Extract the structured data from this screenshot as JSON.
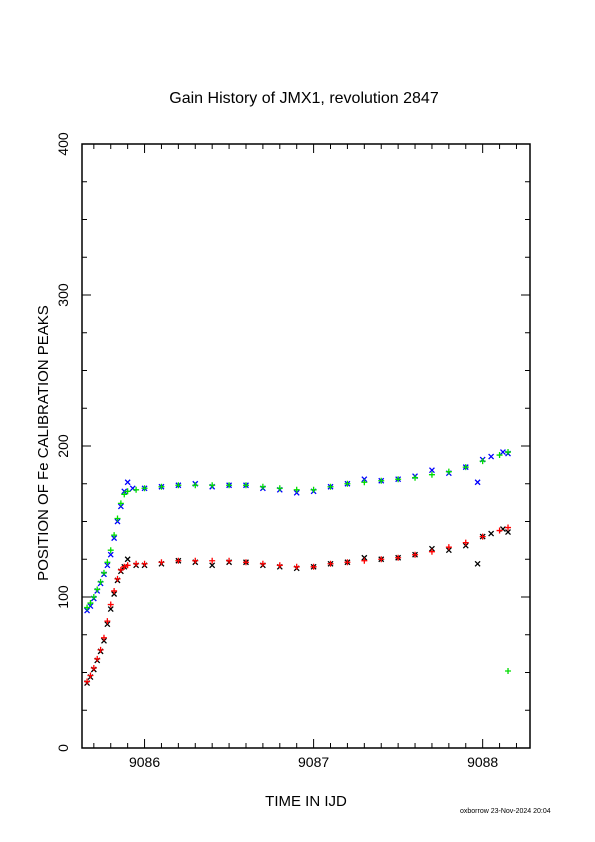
{
  "chart_data": {
    "type": "scatter",
    "title": "Gain History of JMX1, revolution 2847",
    "xlabel": "TIME IN IJD",
    "ylabel": "POSITION OF Fe CALIBRATION PEAKS",
    "xlim": [
      9085.63,
      9088.28
    ],
    "ylim": [
      0,
      400
    ],
    "x_ticks": [
      9086,
      9087,
      9088
    ],
    "y_ticks": [
      0,
      100,
      200,
      300,
      400
    ],
    "x_tick_labels": [
      "9086",
      "9087",
      "9088"
    ],
    "y_tick_labels": [
      "0",
      "100",
      "200",
      "300",
      "400"
    ],
    "grid": false,
    "series": [
      {
        "marker": "x",
        "color": "#0000ff",
        "points": [
          [
            9085.66,
            91
          ],
          [
            9085.68,
            94
          ],
          [
            9085.7,
            99
          ],
          [
            9085.72,
            104
          ],
          [
            9085.74,
            109
          ],
          [
            9085.76,
            115
          ],
          [
            9085.78,
            121
          ],
          [
            9085.8,
            128
          ],
          [
            9085.82,
            139
          ],
          [
            9085.84,
            150
          ],
          [
            9085.86,
            160
          ],
          [
            9085.88,
            170
          ],
          [
            9085.9,
            176
          ],
          [
            9085.93,
            172
          ],
          [
            9086.0,
            172
          ],
          [
            9086.1,
            173
          ],
          [
            9086.2,
            174
          ],
          [
            9086.3,
            175
          ],
          [
            9086.4,
            173
          ],
          [
            9086.5,
            174
          ],
          [
            9086.6,
            174
          ],
          [
            9086.7,
            172
          ],
          [
            9086.8,
            171
          ],
          [
            9086.9,
            169
          ],
          [
            9087.0,
            170
          ],
          [
            9087.1,
            173
          ],
          [
            9087.2,
            175
          ],
          [
            9087.3,
            178
          ],
          [
            9087.4,
            177
          ],
          [
            9087.5,
            178
          ],
          [
            9087.6,
            180
          ],
          [
            9087.7,
            184
          ],
          [
            9087.8,
            182
          ],
          [
            9087.9,
            186
          ],
          [
            9087.97,
            176
          ],
          [
            9088.0,
            191
          ],
          [
            9088.05,
            193
          ],
          [
            9088.12,
            196
          ],
          [
            9088.15,
            195
          ]
        ]
      },
      {
        "marker": "+",
        "color": "#00dd00",
        "points": [
          [
            9085.66,
            93
          ],
          [
            9085.68,
            96
          ],
          [
            9085.7,
            100
          ],
          [
            9085.72,
            105
          ],
          [
            9085.74,
            110
          ],
          [
            9085.76,
            116
          ],
          [
            9085.78,
            123
          ],
          [
            9085.8,
            131
          ],
          [
            9085.82,
            141
          ],
          [
            9085.84,
            152
          ],
          [
            9085.86,
            162
          ],
          [
            9085.88,
            168
          ],
          [
            9085.9,
            170
          ],
          [
            9085.95,
            171
          ],
          [
            9086.0,
            172
          ],
          [
            9086.1,
            173
          ],
          [
            9086.2,
            174
          ],
          [
            9086.3,
            174
          ],
          [
            9086.4,
            174
          ],
          [
            9086.5,
            174
          ],
          [
            9086.6,
            174
          ],
          [
            9086.7,
            173
          ],
          [
            9086.8,
            172
          ],
          [
            9086.9,
            171
          ],
          [
            9087.0,
            171
          ],
          [
            9087.1,
            173
          ],
          [
            9087.2,
            175
          ],
          [
            9087.3,
            176
          ],
          [
            9087.4,
            177
          ],
          [
            9087.5,
            178
          ],
          [
            9087.6,
            179
          ],
          [
            9087.7,
            181
          ],
          [
            9087.8,
            183
          ],
          [
            9087.9,
            186
          ],
          [
            9088.0,
            190
          ],
          [
            9088.1,
            194
          ],
          [
            9088.15,
            196
          ],
          [
            9088.15,
            51
          ]
        ]
      },
      {
        "marker": "x",
        "color": "#000000",
        "points": [
          [
            9085.66,
            43
          ],
          [
            9085.68,
            47
          ],
          [
            9085.7,
            52
          ],
          [
            9085.72,
            58
          ],
          [
            9085.74,
            64
          ],
          [
            9085.76,
            71
          ],
          [
            9085.78,
            82
          ],
          [
            9085.8,
            92
          ],
          [
            9085.82,
            102
          ],
          [
            9085.84,
            111
          ],
          [
            9085.86,
            117
          ],
          [
            9085.88,
            120
          ],
          [
            9085.9,
            125
          ],
          [
            9085.95,
            121
          ],
          [
            9086.0,
            121
          ],
          [
            9086.1,
            122
          ],
          [
            9086.2,
            124
          ],
          [
            9086.3,
            123
          ],
          [
            9086.4,
            121
          ],
          [
            9086.5,
            123
          ],
          [
            9086.6,
            123
          ],
          [
            9086.7,
            121
          ],
          [
            9086.8,
            120
          ],
          [
            9086.9,
            119
          ],
          [
            9087.0,
            120
          ],
          [
            9087.1,
            122
          ],
          [
            9087.2,
            123
          ],
          [
            9087.3,
            126
          ],
          [
            9087.4,
            125
          ],
          [
            9087.5,
            126
          ],
          [
            9087.6,
            128
          ],
          [
            9087.7,
            132
          ],
          [
            9087.8,
            131
          ],
          [
            9087.9,
            134
          ],
          [
            9087.97,
            122
          ],
          [
            9088.0,
            140
          ],
          [
            9088.05,
            142
          ],
          [
            9088.12,
            145
          ],
          [
            9088.15,
            143
          ]
        ]
      },
      {
        "marker": "+",
        "color": "#ff0000",
        "points": [
          [
            9085.66,
            44
          ],
          [
            9085.68,
            48
          ],
          [
            9085.7,
            53
          ],
          [
            9085.72,
            59
          ],
          [
            9085.74,
            65
          ],
          [
            9085.76,
            73
          ],
          [
            9085.78,
            84
          ],
          [
            9085.8,
            95
          ],
          [
            9085.82,
            104
          ],
          [
            9085.84,
            112
          ],
          [
            9085.86,
            118
          ],
          [
            9085.88,
            120
          ],
          [
            9085.9,
            121
          ],
          [
            9085.95,
            122
          ],
          [
            9086.0,
            122
          ],
          [
            9086.1,
            123
          ],
          [
            9086.2,
            124
          ],
          [
            9086.3,
            124
          ],
          [
            9086.4,
            124
          ],
          [
            9086.5,
            124
          ],
          [
            9086.6,
            123
          ],
          [
            9086.7,
            122
          ],
          [
            9086.8,
            121
          ],
          [
            9086.9,
            120
          ],
          [
            9087.0,
            120
          ],
          [
            9087.1,
            122
          ],
          [
            9087.2,
            123
          ],
          [
            9087.3,
            124
          ],
          [
            9087.4,
            125
          ],
          [
            9087.5,
            126
          ],
          [
            9087.6,
            128
          ],
          [
            9087.7,
            130
          ],
          [
            9087.8,
            133
          ],
          [
            9087.9,
            136
          ],
          [
            9088.0,
            140
          ],
          [
            9088.1,
            144
          ],
          [
            9088.15,
            146
          ]
        ]
      }
    ]
  },
  "footer": "oxborrow 23-Nov-2024 20:04"
}
